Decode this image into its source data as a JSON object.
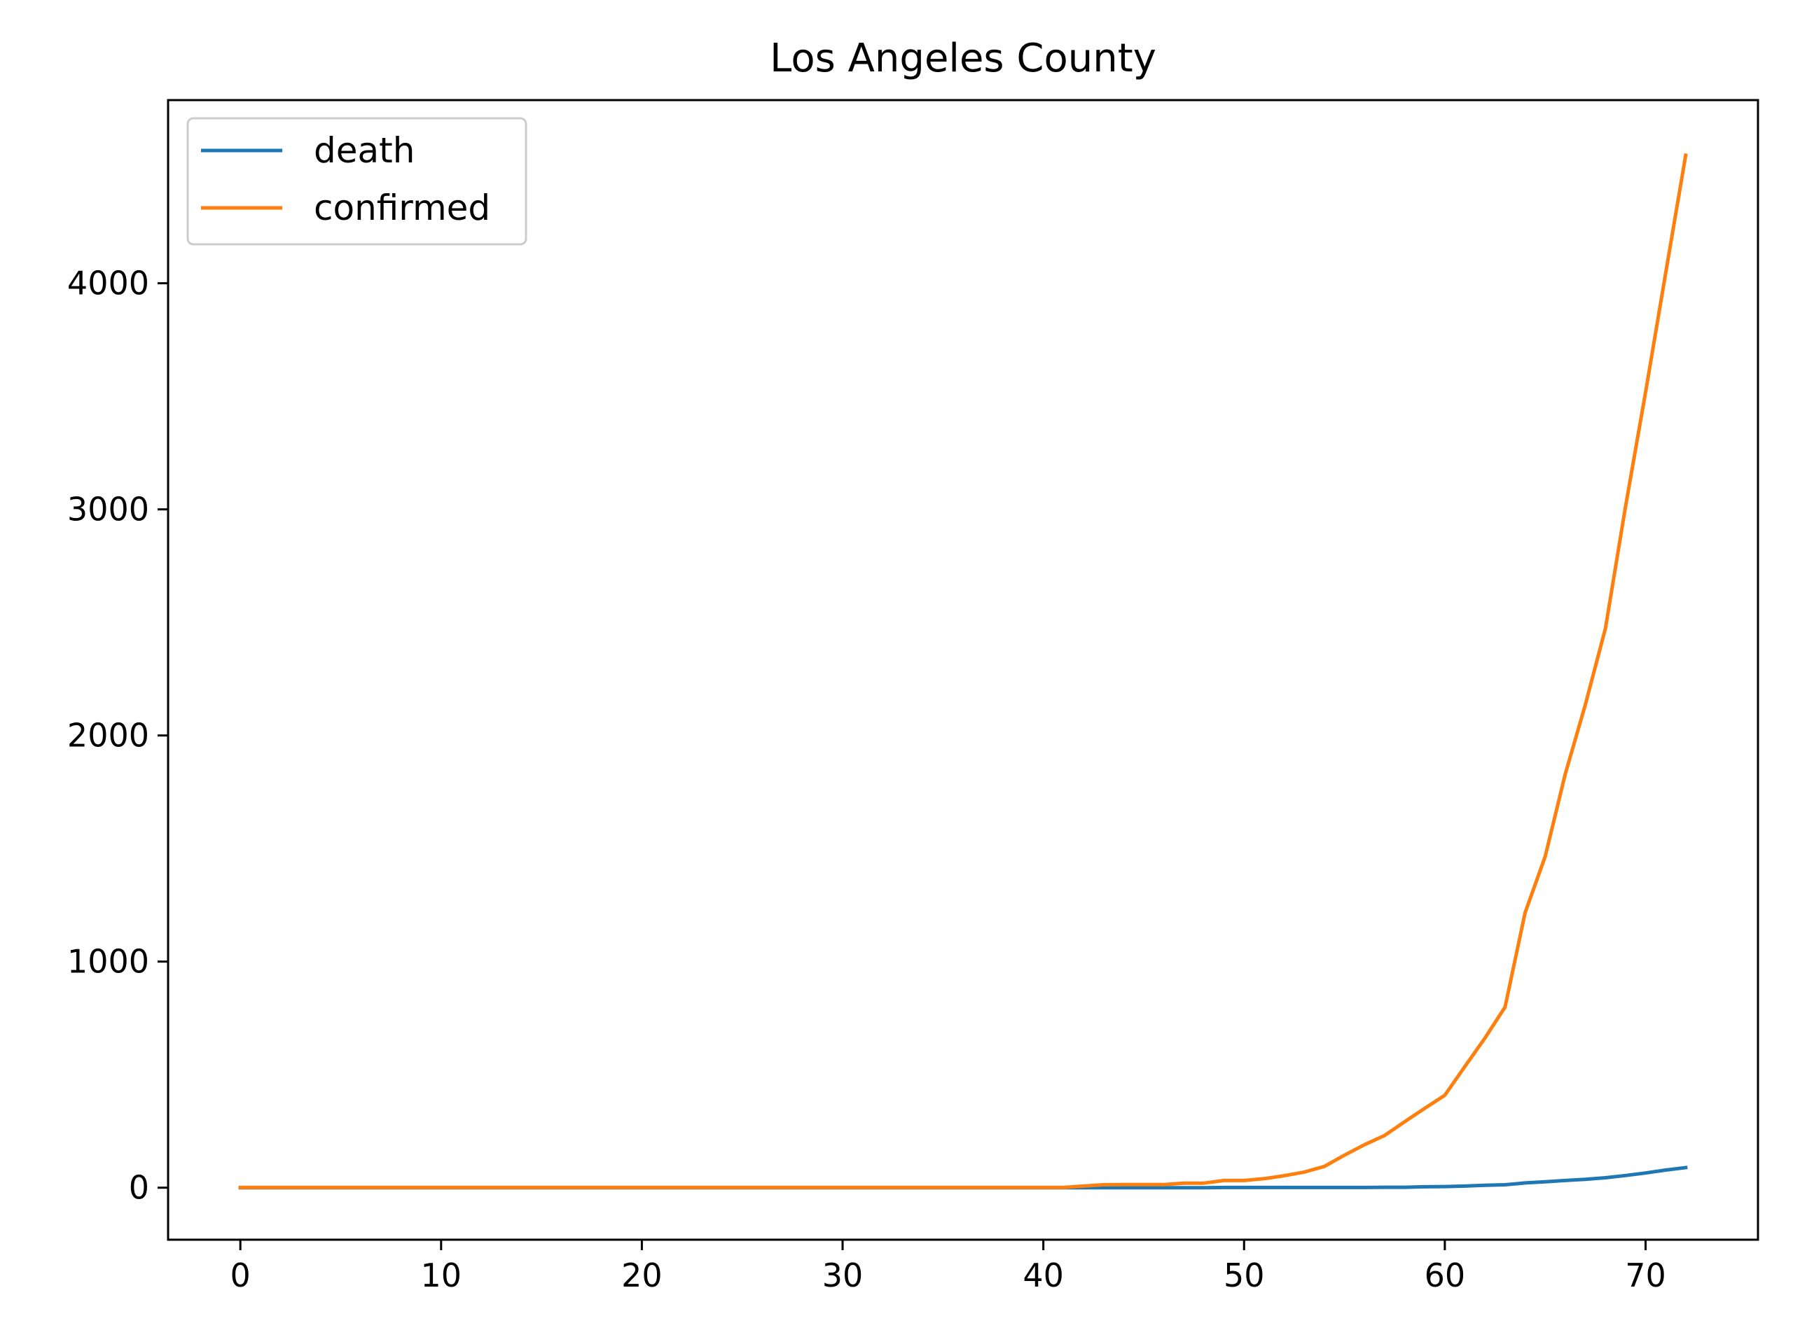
{
  "chart_data": {
    "type": "line",
    "title": "Los Angeles County",
    "xlabel": "",
    "ylabel": "",
    "xlim": [
      -3.6,
      75.6
    ],
    "ylim": [
      -230,
      4810
    ],
    "x_ticks": [
      0,
      10,
      20,
      30,
      40,
      50,
      60,
      70
    ],
    "y_ticks": [
      0,
      1000,
      2000,
      3000,
      4000
    ],
    "grid": false,
    "legend_position": "top-left",
    "series": [
      {
        "name": "death",
        "color": "#1f77b4",
        "x": [
          0,
          1,
          2,
          3,
          4,
          5,
          6,
          7,
          8,
          9,
          10,
          11,
          12,
          13,
          14,
          15,
          16,
          17,
          18,
          19,
          20,
          21,
          22,
          23,
          24,
          25,
          26,
          27,
          28,
          29,
          30,
          31,
          32,
          33,
          34,
          35,
          36,
          37,
          38,
          39,
          40,
          41,
          42,
          43,
          44,
          45,
          46,
          47,
          48,
          49,
          50,
          51,
          52,
          53,
          54,
          55,
          56,
          57,
          58,
          59,
          60,
          61,
          62,
          63,
          64,
          65,
          66,
          67,
          68,
          69,
          70,
          71,
          72
        ],
        "values": [
          0,
          0,
          0,
          0,
          0,
          0,
          0,
          0,
          0,
          0,
          0,
          0,
          0,
          0,
          0,
          0,
          0,
          0,
          0,
          0,
          0,
          0,
          0,
          0,
          0,
          0,
          0,
          0,
          0,
          0,
          0,
          0,
          0,
          0,
          0,
          0,
          0,
          0,
          0,
          0,
          0,
          0,
          0,
          0,
          0,
          0,
          0,
          0,
          0,
          1,
          1,
          1,
          1,
          1,
          1,
          1,
          1,
          2,
          2,
          4,
          5,
          7,
          11,
          13,
          21,
          26,
          32,
          37,
          44,
          54,
          65,
          78,
          89
        ]
      },
      {
        "name": "confirmed",
        "color": "#ff7f0e",
        "x": [
          0,
          1,
          2,
          3,
          4,
          5,
          6,
          7,
          8,
          9,
          10,
          11,
          12,
          13,
          14,
          15,
          16,
          17,
          18,
          19,
          20,
          21,
          22,
          23,
          24,
          25,
          26,
          27,
          28,
          29,
          30,
          31,
          32,
          33,
          34,
          35,
          36,
          37,
          38,
          39,
          40,
          41,
          42,
          43,
          44,
          45,
          46,
          47,
          48,
          49,
          50,
          51,
          52,
          53,
          54,
          55,
          56,
          57,
          58,
          59,
          60,
          61,
          62,
          63,
          64,
          65,
          66,
          67,
          68,
          69,
          70,
          71,
          72
        ],
        "values": [
          1,
          1,
          1,
          1,
          1,
          1,
          1,
          1,
          1,
          1,
          1,
          1,
          1,
          1,
          1,
          1,
          1,
          1,
          1,
          1,
          1,
          1,
          1,
          1,
          1,
          1,
          1,
          1,
          1,
          1,
          1,
          1,
          1,
          1,
          1,
          1,
          1,
          1,
          1,
          1,
          1,
          1,
          7,
          13,
          14,
          14,
          14,
          20,
          20,
          32,
          32,
          40,
          53,
          69,
          94,
          144,
          190,
          231,
          292,
          351,
          409,
          536,
          662,
          799,
          1216,
          1465,
          1829,
          2136,
          2474,
          3011,
          3518,
          4045,
          4566
        ]
      }
    ]
  }
}
